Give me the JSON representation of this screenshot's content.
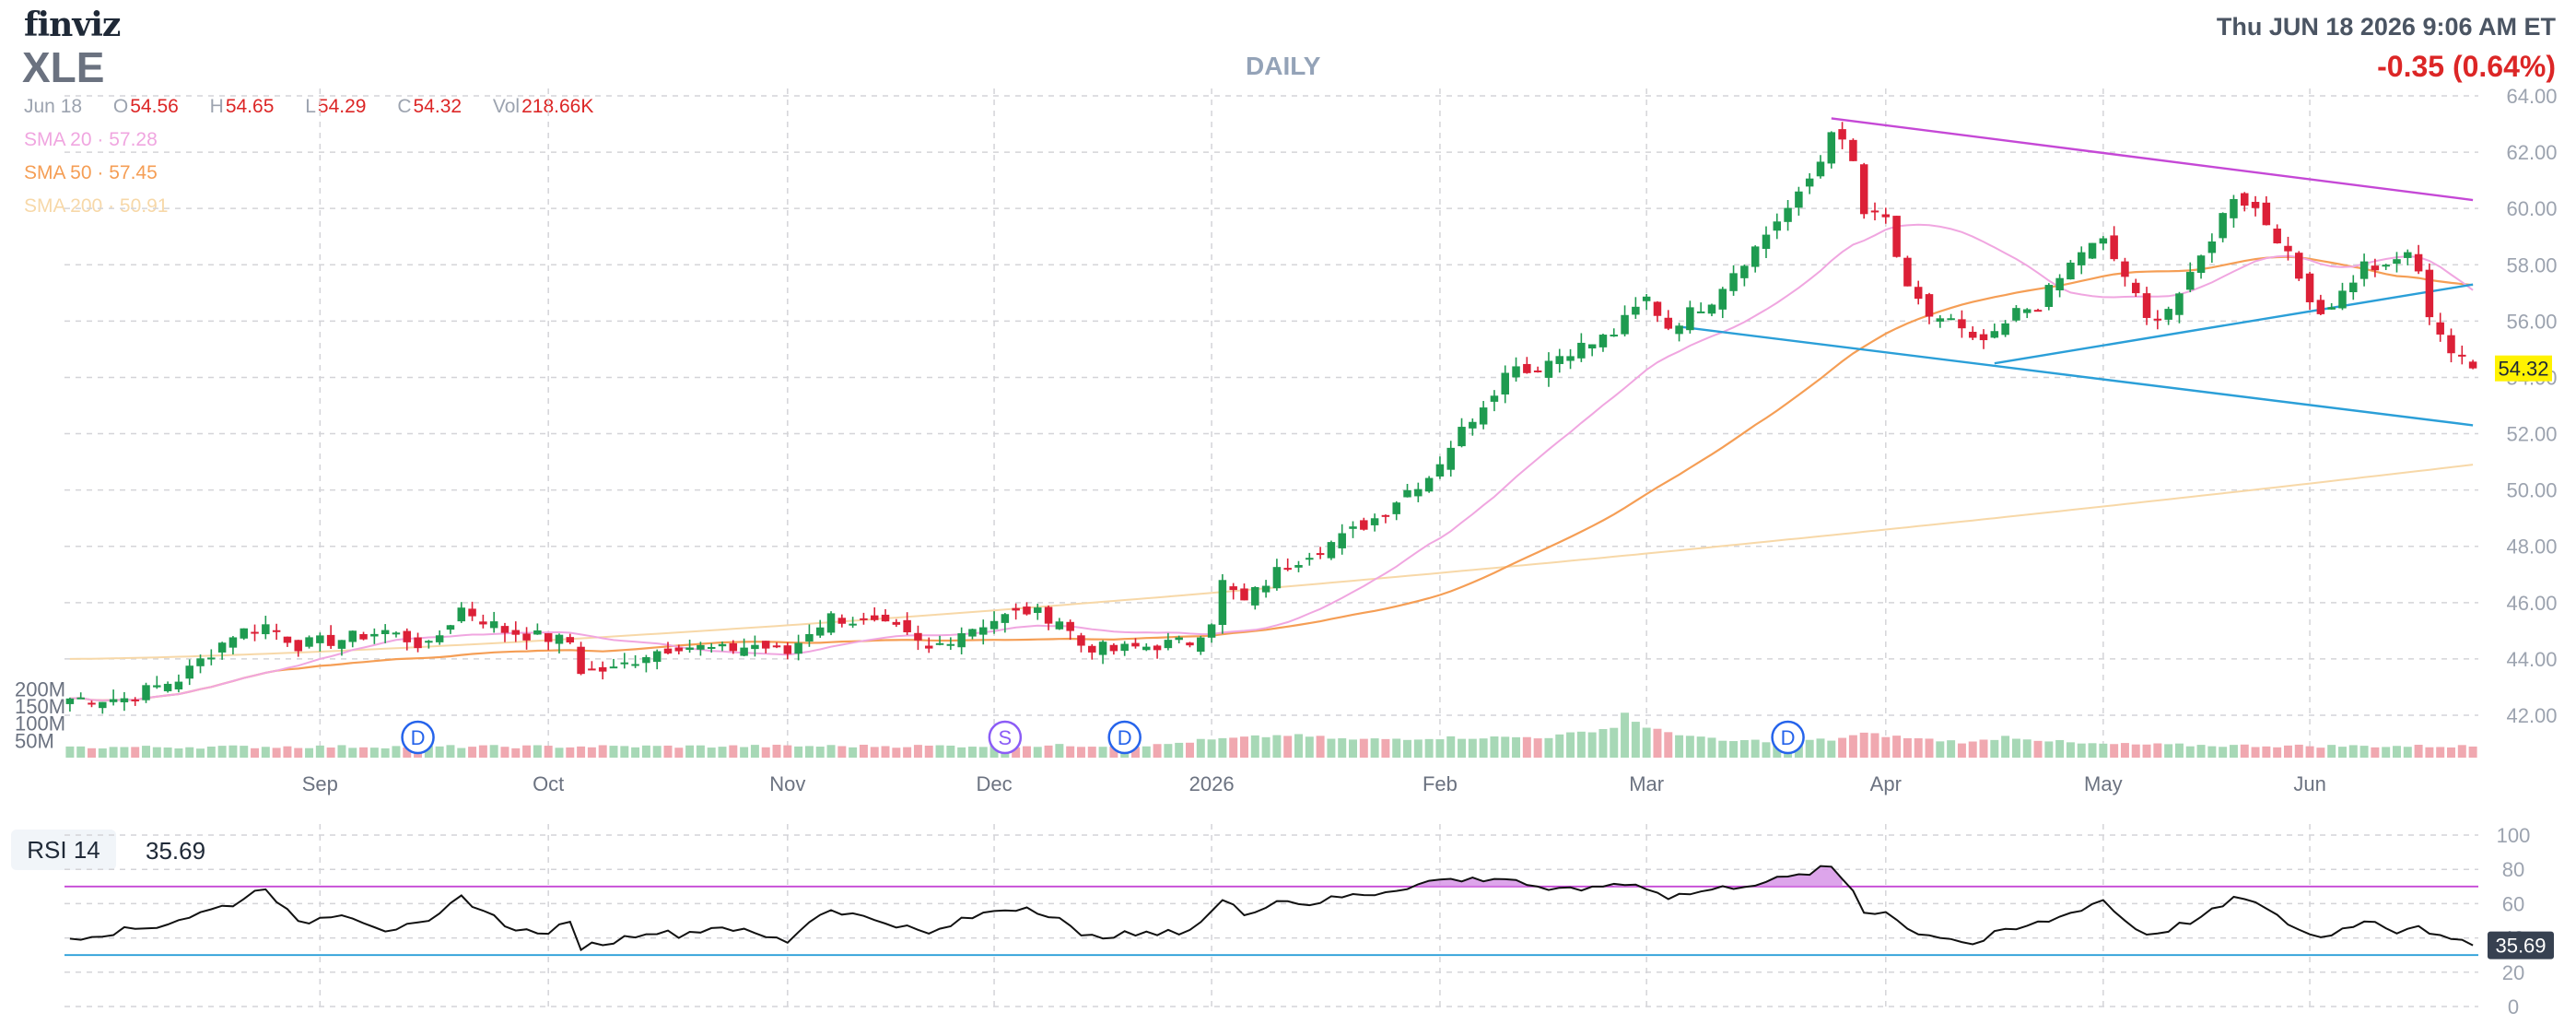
{
  "header": {
    "logo": "finviz",
    "ticker": "XLE",
    "period": "DAILY",
    "datetime": "Thu JUN 18 2026 9:06 AM ET",
    "change": "-0.35 (0.64%)"
  },
  "ohlc": {
    "date": "Jun 18",
    "open_label": "O",
    "open": "54.56",
    "high_label": "H",
    "high": "54.65",
    "low_label": "L",
    "low": "54.29",
    "close_label": "C",
    "close": "54.32",
    "vol_label": "Vol",
    "vol": "218.66K"
  },
  "indicators": {
    "sma20": {
      "label": "SMA 20",
      "sep": "·",
      "value": "57.28"
    },
    "sma50": {
      "label": "SMA 50",
      "sep": "·",
      "value": "57.45"
    },
    "sma200": {
      "label": "SMA 200",
      "sep": "·",
      "value": "50.91"
    }
  },
  "rsi": {
    "label": "RSI 14",
    "value": "35.69"
  },
  "colors": {
    "up": "#1e9b50",
    "down": "#dc2037",
    "sma20": "#f0a6e0",
    "sma50": "#f59e55",
    "sma200": "#f7d8a8",
    "trend_upper": "#c548d6",
    "trend_lower": "#2b9fd8",
    "last_price_bg": "#fff200",
    "rsi_line": "#111111"
  },
  "chart_data": {
    "type": "candlestick",
    "y_axis": {
      "min": 42,
      "max": 64,
      "step": 2,
      "side": "right",
      "ticks": [
        "42.00",
        "44.00",
        "46.00",
        "48.00",
        "50.00",
        "52.00",
        "54.00",
        "56.00",
        "58.00",
        "60.00",
        "62.00",
        "64.00"
      ]
    },
    "x_ticks": [
      "Sep",
      "Oct",
      "Nov",
      "Dec",
      "2026",
      "Feb",
      "Mar",
      "Apr",
      "May",
      "Jun"
    ],
    "x_tick_index": [
      23,
      44,
      66,
      85,
      105,
      126,
      145,
      167,
      187,
      206
    ],
    "volume_axis": {
      "ticks": [
        "200M",
        "150M",
        "100M",
        "50M"
      ],
      "values": [
        200,
        150,
        100,
        50
      ]
    },
    "last_price": 54.32,
    "anchors_close": [
      [
        0,
        42.6
      ],
      [
        5,
        42.6
      ],
      [
        10,
        43.3
      ],
      [
        15,
        44.9
      ],
      [
        18,
        45.2
      ],
      [
        21,
        44.5
      ],
      [
        25,
        44.7
      ],
      [
        29,
        45.0
      ],
      [
        33,
        44.4
      ],
      [
        36,
        45.8
      ],
      [
        40,
        45.0
      ],
      [
        43,
        44.8
      ],
      [
        46,
        44.6
      ],
      [
        47,
        43.6
      ],
      [
        50,
        43.6
      ],
      [
        53,
        44.2
      ],
      [
        56,
        44.5
      ],
      [
        60,
        44.3
      ],
      [
        63,
        44.5
      ],
      [
        66,
        44.2
      ],
      [
        68,
        45.0
      ],
      [
        70,
        45.5
      ],
      [
        73,
        45.3
      ],
      [
        76,
        45.0
      ],
      [
        79,
        44.3
      ],
      [
        82,
        45.0
      ],
      [
        85,
        45.4
      ],
      [
        88,
        45.7
      ],
      [
        91,
        45.4
      ],
      [
        93,
        44.5
      ],
      [
        96,
        44.3
      ],
      [
        100,
        44.5
      ],
      [
        103,
        44.6
      ],
      [
        105,
        45.4
      ],
      [
        106,
        46.7
      ],
      [
        108,
        46.0
      ],
      [
        111,
        47.1
      ],
      [
        114,
        47.8
      ],
      [
        117,
        48.3
      ],
      [
        120,
        49.0
      ],
      [
        123,
        50.0
      ],
      [
        125,
        50.5
      ],
      [
        127,
        51.6
      ],
      [
        129,
        52.6
      ],
      [
        131,
        53.6
      ],
      [
        133,
        54.6
      ],
      [
        134,
        54.2
      ],
      [
        136,
        54.6
      ],
      [
        138,
        55.0
      ],
      [
        140,
        55.2
      ],
      [
        142,
        55.6
      ],
      [
        145,
        56.8
      ],
      [
        147,
        55.8
      ],
      [
        149,
        56.3
      ],
      [
        151,
        56.8
      ],
      [
        153,
        57.8
      ],
      [
        155,
        58.6
      ],
      [
        157,
        59.6
      ],
      [
        159,
        60.4
      ],
      [
        161,
        61.7
      ],
      [
        162,
        62.9
      ],
      [
        164,
        61.6
      ],
      [
        165,
        59.8
      ],
      [
        167,
        59.6
      ],
      [
        169,
        57.0
      ],
      [
        171,
        56.2
      ],
      [
        173,
        56.0
      ],
      [
        175,
        55.2
      ],
      [
        177,
        55.4
      ],
      [
        179,
        56.3
      ],
      [
        181,
        56.6
      ],
      [
        183,
        57.5
      ],
      [
        185,
        58.5
      ],
      [
        187,
        58.8
      ],
      [
        189,
        57.6
      ],
      [
        191,
        56.0
      ],
      [
        193,
        56.5
      ],
      [
        195,
        57.5
      ],
      [
        197,
        59.0
      ],
      [
        199,
        60.5
      ],
      [
        201,
        60.0
      ],
      [
        203,
        59.0
      ],
      [
        205,
        57.5
      ],
      [
        207,
        56.3
      ],
      [
        209,
        57.0
      ],
      [
        211,
        58.0
      ],
      [
        213,
        57.8
      ],
      [
        215,
        58.5
      ],
      [
        216,
        57.6
      ],
      [
        217,
        56.3
      ],
      [
        218,
        55.6
      ],
      [
        219,
        54.9
      ],
      [
        220,
        54.6
      ],
      [
        221,
        54.32
      ]
    ],
    "volume_anchors": [
      [
        0,
        30
      ],
      [
        20,
        32
      ],
      [
        40,
        32
      ],
      [
        60,
        33
      ],
      [
        80,
        34
      ],
      [
        100,
        36
      ],
      [
        104,
        50
      ],
      [
        112,
        66
      ],
      [
        118,
        52
      ],
      [
        126,
        58
      ],
      [
        136,
        60
      ],
      [
        142,
        88
      ],
      [
        143,
        130
      ],
      [
        145,
        85
      ],
      [
        152,
        48
      ],
      [
        162,
        52
      ],
      [
        165,
        70
      ],
      [
        170,
        55
      ],
      [
        175,
        44
      ],
      [
        178,
        62
      ],
      [
        185,
        40
      ],
      [
        195,
        36
      ],
      [
        205,
        34
      ],
      [
        221,
        33
      ]
    ],
    "events": [
      {
        "label": "D",
        "index": 32
      },
      {
        "label": "S",
        "index": 86
      },
      {
        "label": "D",
        "index": 97
      },
      {
        "label": "D",
        "index": 158
      }
    ],
    "trendlines": [
      {
        "name": "upper-resistance",
        "color": "trend_upper",
        "points": [
          [
            162,
            63.2
          ],
          [
            221,
            60.3
          ]
        ]
      },
      {
        "name": "upper-support",
        "color": "trend_lower",
        "points": [
          [
            177,
            54.5
          ],
          [
            221,
            57.3
          ]
        ]
      },
      {
        "name": "lower-channel",
        "color": "trend_lower",
        "points": [
          [
            148,
            55.8
          ],
          [
            221,
            52.3
          ]
        ]
      }
    ],
    "rsi": {
      "axis_ticks": [
        "100",
        "80",
        "60",
        "40",
        "20",
        "0"
      ],
      "axis_values": [
        100,
        80,
        60,
        40,
        20,
        0
      ],
      "overbought": 70,
      "oversold": 30,
      "last": 35.69,
      "anchors": [
        [
          0,
          40
        ],
        [
          8,
          47
        ],
        [
          15,
          60
        ],
        [
          18,
          70
        ],
        [
          21,
          48
        ],
        [
          25,
          55
        ],
        [
          29,
          45
        ],
        [
          33,
          48
        ],
        [
          36,
          64
        ],
        [
          40,
          48
        ],
        [
          43,
          42
        ],
        [
          46,
          48
        ],
        [
          47,
          35
        ],
        [
          50,
          38
        ],
        [
          53,
          44
        ],
        [
          56,
          42
        ],
        [
          60,
          47
        ],
        [
          63,
          42
        ],
        [
          66,
          38
        ],
        [
          68,
          50
        ],
        [
          70,
          57
        ],
        [
          73,
          52
        ],
        [
          76,
          48
        ],
        [
          79,
          42
        ],
        [
          82,
          50
        ],
        [
          85,
          56
        ],
        [
          88,
          58
        ],
        [
          91,
          52
        ],
        [
          93,
          40
        ],
        [
          96,
          42
        ],
        [
          100,
          42
        ],
        [
          103,
          45
        ],
        [
          105,
          55
        ],
        [
          106,
          62
        ],
        [
          108,
          54
        ],
        [
          111,
          62
        ],
        [
          114,
          60
        ],
        [
          117,
          64
        ],
        [
          120,
          66
        ],
        [
          123,
          70
        ],
        [
          126,
          74
        ],
        [
          129,
          74
        ],
        [
          131,
          75
        ],
        [
          133,
          74
        ],
        [
          136,
          66
        ],
        [
          138,
          70
        ],
        [
          140,
          68
        ],
        [
          142,
          72
        ],
        [
          145,
          70
        ],
        [
          147,
          64
        ],
        [
          151,
          68
        ],
        [
          155,
          72
        ],
        [
          159,
          76
        ],
        [
          161,
          80
        ],
        [
          162,
          81
        ],
        [
          164,
          68
        ],
        [
          165,
          55
        ],
        [
          167,
          56
        ],
        [
          169,
          45
        ],
        [
          171,
          42
        ],
        [
          173,
          40
        ],
        [
          175,
          36
        ],
        [
          177,
          42
        ],
        [
          179,
          45
        ],
        [
          183,
          52
        ],
        [
          186,
          60
        ],
        [
          187,
          62
        ],
        [
          189,
          50
        ],
        [
          191,
          42
        ],
        [
          193,
          45
        ],
        [
          196,
          52
        ],
        [
          199,
          62
        ],
        [
          200,
          64
        ],
        [
          203,
          52
        ],
        [
          206,
          42
        ],
        [
          207,
          40
        ],
        [
          210,
          48
        ],
        [
          212,
          50
        ],
        [
          214,
          44
        ],
        [
          216,
          48
        ],
        [
          218,
          40
        ],
        [
          220,
          37
        ],
        [
          221,
          35.69
        ]
      ]
    }
  }
}
